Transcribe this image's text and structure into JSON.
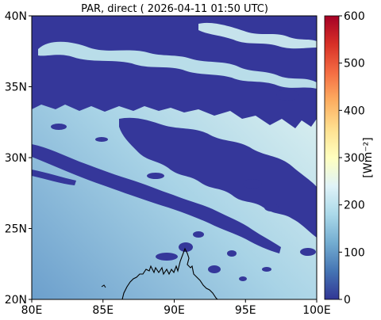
{
  "title": "PAR, direct ( 2026-04-11 01:50 UTC)",
  "map": {
    "lon_range": [
      80,
      100
    ],
    "lat_range": [
      20,
      40
    ],
    "x_ticks": [
      "80E",
      "85E",
      "90E",
      "95E",
      "100E"
    ],
    "y_ticks": [
      "20N",
      "25N",
      "30N",
      "35N",
      "40N"
    ]
  },
  "colorbar": {
    "label": "[Wm⁻²]",
    "range": [
      0,
      600
    ],
    "ticks": [
      "0",
      "100",
      "200",
      "300",
      "400",
      "500",
      "600"
    ],
    "colormap": "RdYlBu_r",
    "colors": [
      "#313695",
      "#4575b4",
      "#74add1",
      "#abd9e9",
      "#e0f3f8",
      "#ffffbf",
      "#fee090",
      "#fdae61",
      "#f46d43",
      "#d73027",
      "#a50026"
    ]
  },
  "colors": {
    "cloud": "#35379a",
    "clear_sky_low": "#6fa3cf",
    "clear_sky_high": "#e3f2f1",
    "coastline": "#000000"
  }
}
